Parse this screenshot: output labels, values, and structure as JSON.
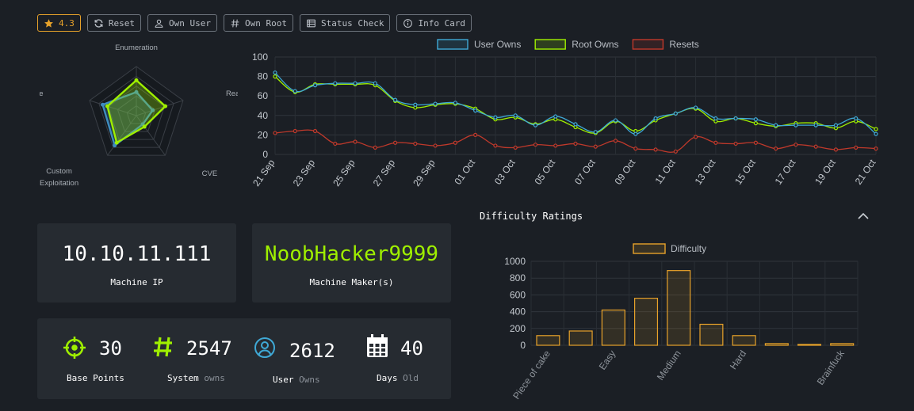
{
  "toolbar": {
    "rating": "4.3",
    "reset": "Reset",
    "own_user": "Own User",
    "own_root": "Own Root",
    "status_check": "Status Check",
    "info_card": "Info Card"
  },
  "radar": {
    "labels": [
      "Enumeration",
      "Real-Life",
      "CVE",
      "Custom Exploitation",
      "CTF-Like"
    ],
    "label_lines": [
      [
        "Enumeration"
      ],
      [
        "Real-Life"
      ],
      [
        "CVE"
      ],
      [
        "Custom",
        "Exploitation"
      ],
      [
        "CTF-Like"
      ]
    ],
    "series": [
      {
        "values": [
          0.72,
          0.62,
          0.28,
          0.68,
          0.62
        ],
        "color": "#9fef00"
      },
      {
        "values": [
          0.48,
          0.35,
          0.22,
          0.75,
          0.72
        ],
        "color": "#3f8dbf"
      }
    ]
  },
  "machine": {
    "ip": "10.10.11.111",
    "ip_label": "Machine IP",
    "maker": "NoobHacker9999",
    "maker_label": "Machine Maker(s)"
  },
  "stats": {
    "base_points": {
      "value": "30",
      "label": "Base Points"
    },
    "system_owns": {
      "value": "2547",
      "label": "System",
      "sub": "owns"
    },
    "user_owns": {
      "value": "2612",
      "label": "User",
      "sub": "Owns"
    },
    "days_old": {
      "value": "40",
      "label": "Days",
      "sub": "Old"
    }
  },
  "difficulty": {
    "title": "Difficulty Ratings"
  },
  "colors": {
    "user": "#3fa9d6",
    "root": "#9fef00",
    "resets": "#c0392b",
    "difficulty": "#e7a22a",
    "accent": "#9fef00"
  },
  "chart_data": [
    {
      "type": "line",
      "x": [
        "21 Sep",
        "22 Sep",
        "23 Sep",
        "24 Sep",
        "25 Sep",
        "26 Sep",
        "27 Sep",
        "28 Sep",
        "29 Sep",
        "30 Sep",
        "01 Oct",
        "02 Oct",
        "03 Oct",
        "04 Oct",
        "05 Oct",
        "06 Oct",
        "07 Oct",
        "08 Oct",
        "09 Oct",
        "10 Oct",
        "11 Oct",
        "12 Oct",
        "13 Oct",
        "14 Oct",
        "15 Oct",
        "16 Oct",
        "17 Oct",
        "18 Oct",
        "19 Oct",
        "20 Oct",
        "21 Oct"
      ],
      "xticks": [
        "21 Sep",
        "23 Sep",
        "25 Sep",
        "27 Sep",
        "29 Sep",
        "01 Oct",
        "03 Oct",
        "05 Oct",
        "07 Oct",
        "09 Oct",
        "11 Oct",
        "13 Oct",
        "15 Oct",
        "17 Oct",
        "19 Oct",
        "21 Oct"
      ],
      "series": [
        {
          "name": "User Owns",
          "values": [
            84,
            65,
            71,
            73,
            73,
            73,
            56,
            51,
            52,
            53,
            45,
            38,
            40,
            30,
            39,
            31,
            23,
            35,
            21,
            37,
            42,
            48,
            37,
            37,
            36,
            30,
            30,
            30,
            30,
            37,
            21
          ]
        },
        {
          "name": "Root Owns",
          "values": [
            80,
            64,
            72,
            72,
            72,
            71,
            55,
            48,
            51,
            52,
            47,
            36,
            38,
            31,
            36,
            28,
            22,
            34,
            24,
            35,
            42,
            47,
            34,
            37,
            32,
            29,
            32,
            32,
            27,
            34,
            26
          ]
        },
        {
          "name": "Resets",
          "values": [
            22,
            24,
            24,
            11,
            13,
            7,
            12,
            11,
            9,
            12,
            20,
            9,
            7,
            10,
            9,
            11,
            8,
            14,
            6,
            5,
            3,
            18,
            12,
            11,
            12,
            6,
            10,
            8,
            5,
            7,
            6
          ]
        }
      ],
      "ylim": [
        0,
        100
      ],
      "yticks": [
        0,
        20,
        40,
        60,
        80,
        100
      ],
      "grid": true,
      "legend": "top"
    },
    {
      "type": "bar",
      "categories": [
        "Piece of cake",
        "",
        "Easy",
        "",
        "Medium",
        "",
        "Hard",
        "",
        "",
        "Brainfuck"
      ],
      "tick_labels": [
        "Piece of cake",
        "Easy",
        "Medium",
        "Hard",
        "Brainfuck"
      ],
      "series": [
        {
          "name": "Difficulty",
          "values": [
            115,
            170,
            420,
            560,
            890,
            250,
            115,
            20,
            10,
            20
          ]
        }
      ],
      "ylim": [
        0,
        1000
      ],
      "yticks": [
        0,
        200,
        400,
        600,
        800,
        1000
      ],
      "grid": true,
      "legend": "top"
    }
  ]
}
